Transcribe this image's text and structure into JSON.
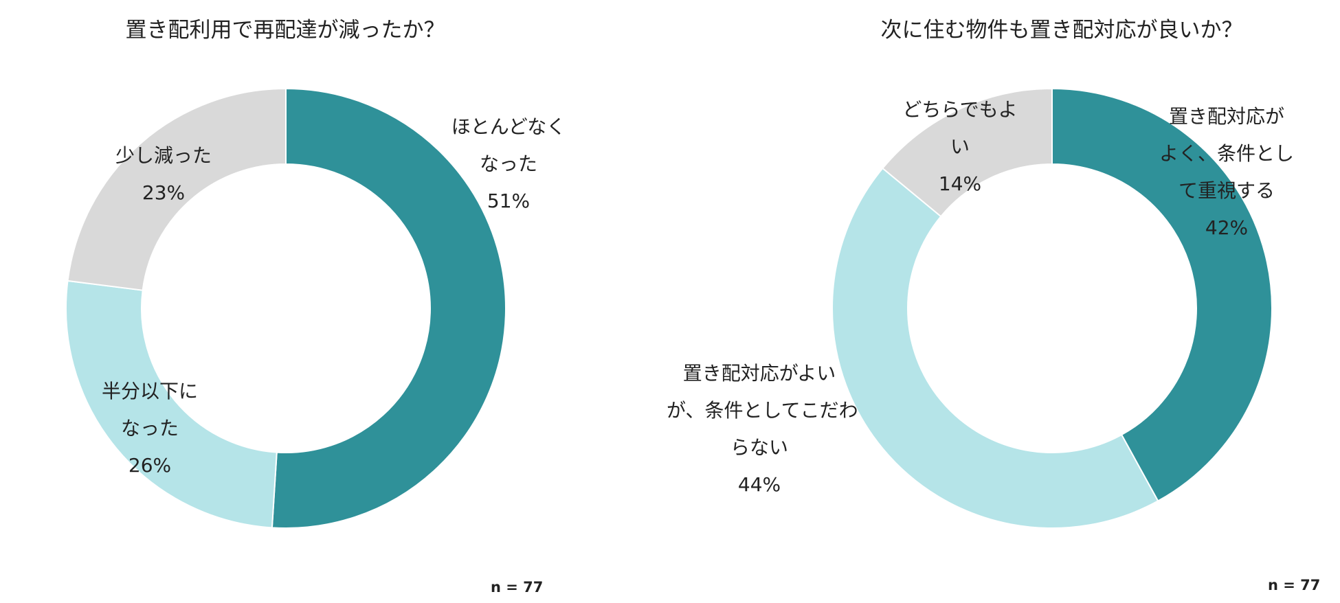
{
  "chart_data": [
    {
      "type": "donut",
      "title": "置き配利用で再配達が減ったか？",
      "note": "n = 77",
      "slices": [
        {
          "label_lines": [
            "ほとんどなく",
            "なった"
          ],
          "value": 51,
          "value_label": "51%",
          "color": "#2F9199"
        },
        {
          "label_lines": [
            "半分以下に",
            "なった"
          ],
          "value": 26,
          "value_label": "26%",
          "color": "#B5E4E8"
        },
        {
          "label_lines": [
            "少し減った"
          ],
          "value": 23,
          "value_label": "23%",
          "color": "#D9D9D9"
        }
      ]
    },
    {
      "type": "donut",
      "title": "次に住む物件も置き配対応が良いか？",
      "note": "n = 77",
      "slices": [
        {
          "label_lines": [
            "置き配対応が",
            "よく、条件とし",
            "て重視する"
          ],
          "value": 42,
          "value_label": "42%",
          "color": "#2F9199"
        },
        {
          "label_lines": [
            "置き配対応がよい",
            "が、条件としてこだわ",
            "らない"
          ],
          "value": 44,
          "value_label": "44%",
          "color": "#B5E4E8"
        },
        {
          "label_lines": [
            "どちらでもよ",
            "い"
          ],
          "value": 14,
          "value_label": "14%",
          "color": "#D9D9D9"
        }
      ]
    }
  ]
}
